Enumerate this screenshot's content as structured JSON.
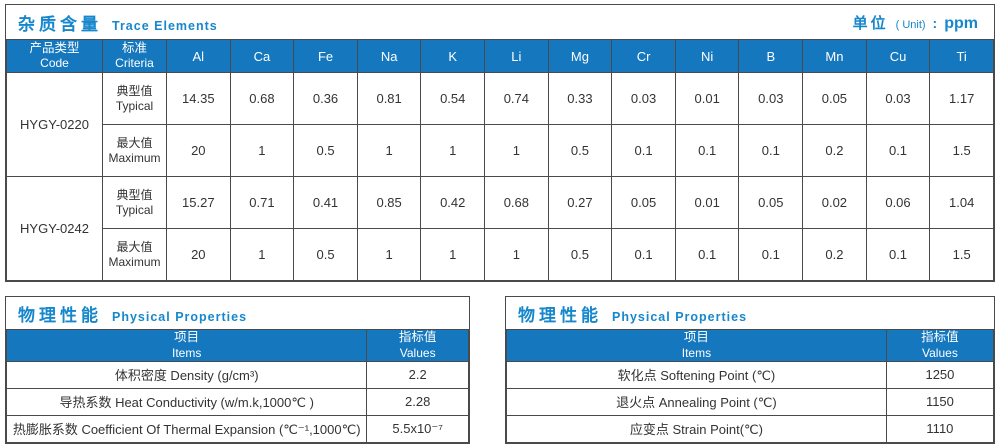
{
  "colors": {
    "accent_blue": "#1577be",
    "title_blue": "#1787cc",
    "border": "#4a4a4a",
    "text": "#333333"
  },
  "trace_table": {
    "title_zh": "杂质含量",
    "title_en": "Trace Elements",
    "unit_zh": "单位",
    "unit_en": "( Unit)",
    "unit_sep": ":",
    "unit_value": "ppm",
    "col_headers": [
      {
        "zh": "产品类型",
        "en": "Code"
      },
      {
        "zh": "标准",
        "en": "Criteria"
      }
    ],
    "elements": [
      "Al",
      "Ca",
      "Fe",
      "Na",
      "K",
      "Li",
      "Mg",
      "Cr",
      "Ni",
      "B",
      "Mn",
      "Cu",
      "Ti"
    ],
    "rows": [
      {
        "code": "HYGY-0220",
        "criteria": [
          {
            "zh": "典型值",
            "en": "Typical",
            "values": [
              "14.35",
              "0.68",
              "0.36",
              "0.81",
              "0.54",
              "0.74",
              "0.33",
              "0.03",
              "0.01",
              "0.03",
              "0.05",
              "0.03",
              "1.17"
            ]
          },
          {
            "zh": "最大值",
            "en": "Maximum",
            "values": [
              "20",
              "1",
              "0.5",
              "1",
              "1",
              "1",
              "0.5",
              "0.1",
              "0.1",
              "0.1",
              "0.2",
              "0.1",
              "1.5"
            ]
          }
        ]
      },
      {
        "code": "HYGY-0242",
        "criteria": [
          {
            "zh": "典型值",
            "en": "Typical",
            "values": [
              "15.27",
              "0.71",
              "0.41",
              "0.85",
              "0.42",
              "0.68",
              "0.27",
              "0.05",
              "0.01",
              "0.05",
              "0.02",
              "0.06",
              "1.04"
            ]
          },
          {
            "zh": "最大值",
            "en": "Maximum",
            "values": [
              "20",
              "1",
              "0.5",
              "1",
              "1",
              "1",
              "0.5",
              "0.1",
              "0.1",
              "0.1",
              "0.2",
              "0.1",
              "1.5"
            ]
          }
        ]
      }
    ]
  },
  "physical_tables": [
    {
      "title_zh": "物理性能",
      "title_en": "Physical Properties",
      "headers": {
        "items_zh": "项目",
        "items_en": "Items",
        "values_zh": "指标值",
        "values_en": "Values"
      },
      "rows": [
        {
          "item": "体积密度 Density (g/cm³)",
          "value": "2.2"
        },
        {
          "item": "导热系数 Heat Conductivity (w/m.k,1000℃ )",
          "value": "2.28"
        },
        {
          "item": "热膨胀系数 Coefficient Of Thermal Expansion (℃⁻¹,1000℃)",
          "value": "5.5x10⁻⁷"
        }
      ]
    },
    {
      "title_zh": "物理性能",
      "title_en": "Physical Properties",
      "headers": {
        "items_zh": "项目",
        "items_en": "Items",
        "values_zh": "指标值",
        "values_en": "Values"
      },
      "rows": [
        {
          "item": "软化点 Softening Point (℃)",
          "value": "1250"
        },
        {
          "item": "退火点 Annealing Point (℃)",
          "value": "1150"
        },
        {
          "item": "应变点 Strain Point(℃)",
          "value": "1110"
        }
      ]
    }
  ]
}
